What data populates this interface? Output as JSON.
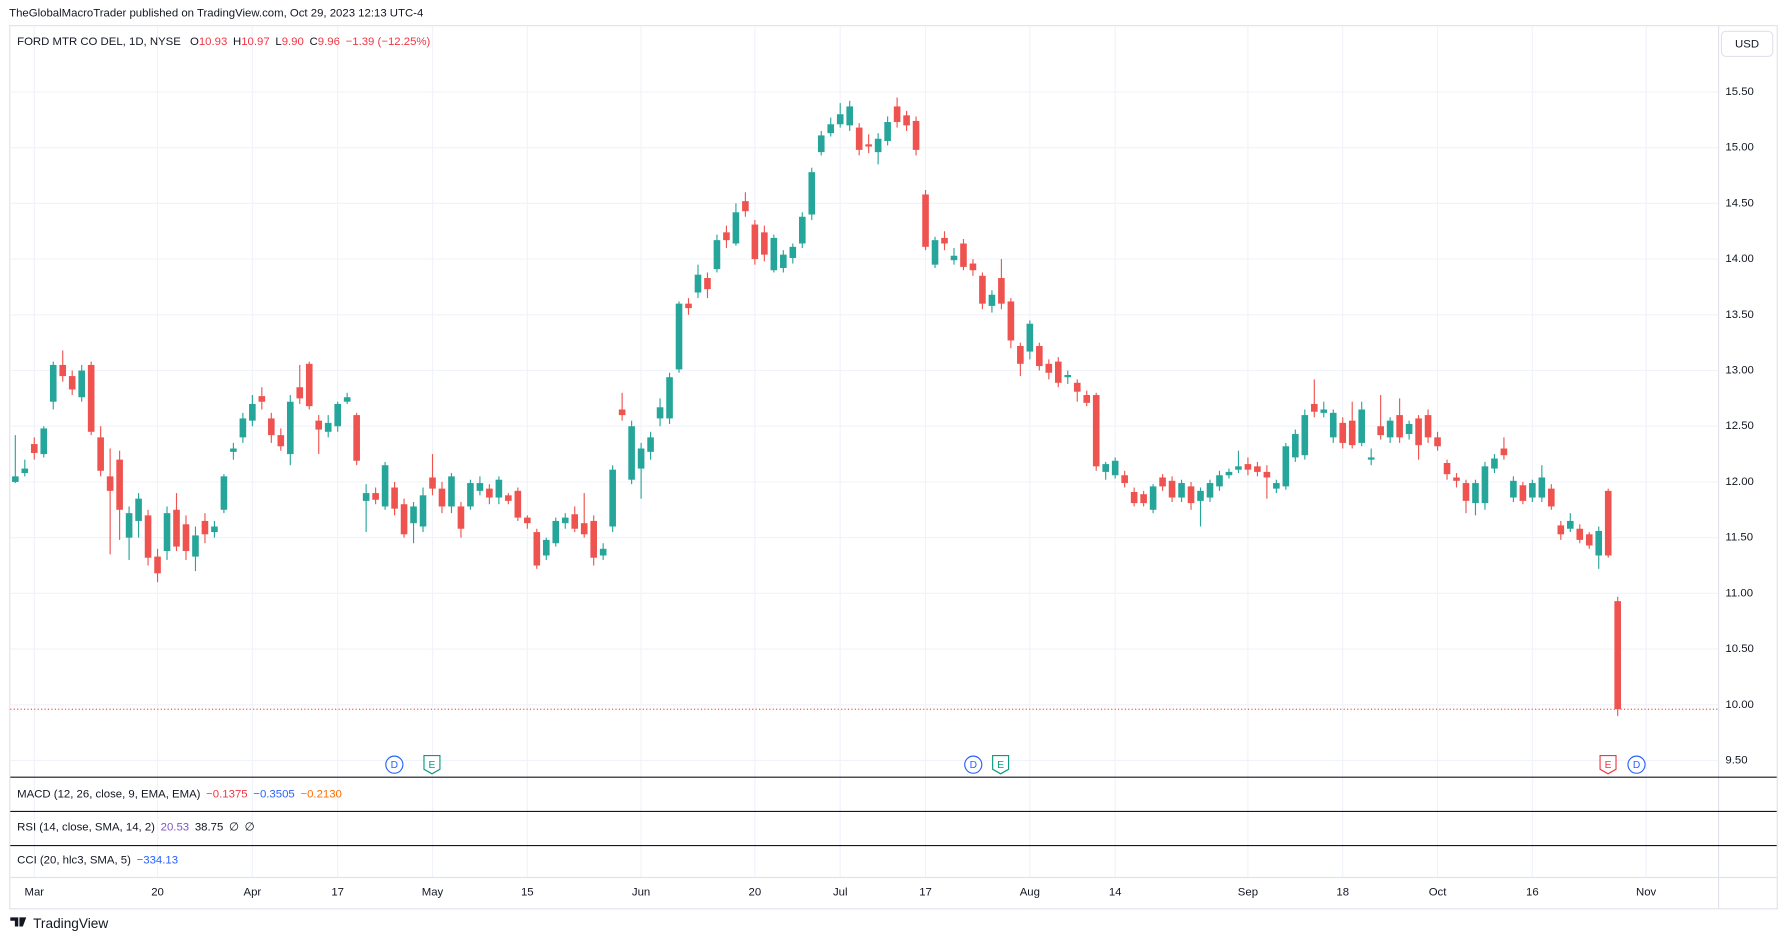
{
  "publish_note": "TheGlobalMacroTrader published on TradingView.com, Oct 29, 2023 12:13 UTC-4",
  "header": {
    "symbol": "FORD MTR CO DEL, 1D, NYSE",
    "ohlc": [
      {
        "label": "O",
        "value": "10.93"
      },
      {
        "label": "H",
        "value": "10.97"
      },
      {
        "label": "L",
        "value": "9.90"
      },
      {
        "label": "C",
        "value": "9.96"
      }
    ],
    "change": "−1.39 (−12.25%)"
  },
  "currency_button": "USD",
  "indicators": [
    {
      "name": "MACD (12, 26, close, 9, EMA, EMA)",
      "values": [
        {
          "text": "−0.1375",
          "color": "#f23645"
        },
        {
          "text": "−0.3505",
          "color": "#2962ff"
        },
        {
          "text": "−0.2130",
          "color": "#ff6d00"
        }
      ]
    },
    {
      "name": "RSI (14, close, SMA, 14, 2)",
      "values": [
        {
          "text": "20.53",
          "color": "#7e57c2"
        },
        {
          "text": "38.75",
          "color": "#131722"
        },
        {
          "text": "∅",
          "color": "#131722"
        },
        {
          "text": "∅",
          "color": "#131722"
        }
      ]
    },
    {
      "name": "CCI (20, hlc3, SMA, 5)",
      "values": [
        {
          "text": "−334.13",
          "color": "#2962ff"
        }
      ]
    }
  ],
  "events": [
    {
      "label": "D",
      "color": "#2962ff"
    },
    {
      "label": "E",
      "color": "#089981"
    },
    {
      "label": "D",
      "color": "#2962ff"
    },
    {
      "label": "E",
      "color": "#089981"
    },
    {
      "label": "E",
      "color": "#f23645"
    },
    {
      "label": "D",
      "color": "#2962ff"
    }
  ],
  "brand": "TradingView",
  "chart_data": {
    "type": "candlestick",
    "up_color": "#26a69a",
    "down_color": "#ef5350",
    "grid": true,
    "last_price_line": true,
    "ylim": [
      9.35,
      16.09
    ],
    "yticks": [
      {
        "value": 9.5,
        "label": "9.50"
      },
      {
        "value": 10,
        "label": "10.00"
      },
      {
        "value": 10.5,
        "label": "10.50"
      },
      {
        "value": 11,
        "label": "11.00"
      },
      {
        "value": 11.5,
        "label": "11.50"
      },
      {
        "value": 12,
        "label": "12.00"
      },
      {
        "value": 12.5,
        "label": "12.50"
      },
      {
        "value": 13,
        "label": "13.00"
      },
      {
        "value": 13.5,
        "label": "13.50"
      },
      {
        "value": 14,
        "label": "14.00"
      },
      {
        "value": 14.5,
        "label": "14.50"
      },
      {
        "value": 15,
        "label": "15.00"
      },
      {
        "value": 15.5,
        "label": "15.50"
      }
    ],
    "categories": [
      null,
      null,
      "Mar",
      null,
      null,
      null,
      null,
      null,
      null,
      null,
      null,
      null,
      null,
      null,
      null,
      "20",
      null,
      null,
      null,
      null,
      null,
      null,
      null,
      null,
      null,
      "Apr",
      null,
      null,
      null,
      null,
      null,
      null,
      null,
      null,
      "17",
      null,
      null,
      null,
      null,
      null,
      null,
      null,
      null,
      null,
      "May",
      null,
      null,
      null,
      null,
      null,
      null,
      null,
      null,
      null,
      "15",
      null,
      null,
      null,
      null,
      null,
      null,
      null,
      null,
      null,
      null,
      null,
      "Jun",
      null,
      null,
      null,
      null,
      null,
      null,
      null,
      null,
      null,
      null,
      null,
      "20",
      null,
      null,
      null,
      null,
      null,
      null,
      null,
      null,
      "Jul",
      null,
      null,
      null,
      null,
      null,
      null,
      null,
      null,
      "17",
      null,
      null,
      null,
      null,
      null,
      null,
      null,
      null,
      null,
      null,
      "Aug",
      null,
      null,
      null,
      null,
      null,
      null,
      null,
      null,
      "14",
      null,
      null,
      null,
      null,
      null,
      null,
      null,
      null,
      null,
      null,
      null,
      null,
      null,
      "Sep",
      null,
      null,
      null,
      null,
      null,
      null,
      null,
      null,
      null,
      "18",
      null,
      null,
      null,
      null,
      null,
      null,
      null,
      null,
      null,
      "Oct",
      null,
      null,
      null,
      null,
      null,
      null,
      null,
      null,
      null,
      "16",
      null,
      null,
      null,
      null,
      null,
      null,
      null,
      null,
      null,
      null,
      null,
      "Nov"
    ],
    "open": [
      12.0,
      12.08,
      12.34,
      12.25,
      12.72,
      13.05,
      12.95,
      12.76,
      13.05,
      12.4,
      12.05,
      12.2,
      11.5,
      11.65,
      11.7,
      11.33,
      11.38,
      11.75,
      11.62,
      11.33,
      11.65,
      11.55,
      11.75,
      12.27,
      12.4,
      12.55,
      12.77,
      12.57,
      12.42,
      12.25,
      12.85,
      13.06,
      12.55,
      12.45,
      12.5,
      12.72,
      12.6,
      11.83,
      11.9,
      11.78,
      11.95,
      11.8,
      11.63,
      11.6,
      12.04,
      11.94,
      11.78,
      11.78,
      11.78,
      11.92,
      11.94,
      11.86,
      11.88,
      11.92,
      11.68,
      11.55,
      11.34,
      11.45,
      11.63,
      11.71,
      11.63,
      11.65,
      11.34,
      11.6,
      12.65,
      12.02,
      12.12,
      12.27,
      12.57,
      12.57,
      13.01,
      13.6,
      13.7,
      13.83,
      13.91,
      14.24,
      14.14,
      14.52,
      14.31,
      14.24,
      13.9,
      13.92,
      14.01,
      14.14,
      14.4,
      14.96,
      15.13,
      15.21,
      15.2,
      15.18,
      15.03,
      14.96,
      15.06,
      15.37,
      15.29,
      15.24,
      14.58,
      13.95,
      14.19,
      13.99,
      14.14,
      13.96,
      13.85,
      13.58,
      13.83,
      13.62,
      13.22,
      13.17,
      13.22,
      13.06,
      13.08,
      12.94,
      12.89,
      12.78,
      12.78,
      12.09,
      12.06,
      12.06,
      11.91,
      11.89,
      11.75,
      12.04,
      12.01,
      11.86,
      11.96,
      11.83,
      11.86,
      11.96,
      12.06,
      12.11,
      12.16,
      12.14,
      12.09,
      11.94,
      11.96,
      12.22,
      12.24,
      12.7,
      12.62,
      12.4,
      12.53,
      12.55,
      12.35,
      12.2,
      12.5,
      12.4,
      12.6,
      12.43,
      12.57,
      12.6,
      12.4,
      12.17,
      12.04,
      11.99,
      11.81,
      11.81,
      12.12,
      12.3,
      11.86,
      11.97,
      11.86,
      11.86,
      11.94,
      11.61,
      11.58,
      11.58,
      11.53,
      11.34,
      11.92,
      10.93,
      null,
      null,
      null
    ],
    "high": [
      12.42,
      12.2,
      12.4,
      12.5,
      13.08,
      13.18,
      13.0,
      13.05,
      13.08,
      12.5,
      12.3,
      12.28,
      11.78,
      11.9,
      11.75,
      11.4,
      11.78,
      11.9,
      11.7,
      11.6,
      11.72,
      11.65,
      12.07,
      12.35,
      12.62,
      12.78,
      12.85,
      12.62,
      12.48,
      12.78,
      13.05,
      13.08,
      12.6,
      12.6,
      12.72,
      12.8,
      12.62,
      11.98,
      11.95,
      12.18,
      12.0,
      11.85,
      11.82,
      11.95,
      12.25,
      12.0,
      12.08,
      11.82,
      12.02,
      12.05,
      11.98,
      12.05,
      11.9,
      11.95,
      11.7,
      11.58,
      11.5,
      11.68,
      11.72,
      11.78,
      11.9,
      11.7,
      11.45,
      12.15,
      12.8,
      12.55,
      12.35,
      12.45,
      12.75,
      12.98,
      13.62,
      13.65,
      13.95,
      13.88,
      14.22,
      14.3,
      14.5,
      14.6,
      14.35,
      14.3,
      14.22,
      14.08,
      14.14,
      14.42,
      14.82,
      15.15,
      15.27,
      15.4,
      15.42,
      15.22,
      15.12,
      15.13,
      15.28,
      15.45,
      15.33,
      15.28,
      14.62,
      14.2,
      14.25,
      14.1,
      14.18,
      14.0,
      13.88,
      13.72,
      14.0,
      13.65,
      13.25,
      13.45,
      13.25,
      13.1,
      13.12,
      13.0,
      12.92,
      12.82,
      12.8,
      12.18,
      12.22,
      12.1,
      11.95,
      11.92,
      11.98,
      12.07,
      12.05,
      12.02,
      12.0,
      11.95,
      12.02,
      12.1,
      12.12,
      12.28,
      12.22,
      12.18,
      12.15,
      12.02,
      12.35,
      12.47,
      12.65,
      12.92,
      12.72,
      12.65,
      12.58,
      12.72,
      12.72,
      12.3,
      12.78,
      12.58,
      12.75,
      12.55,
      12.6,
      12.65,
      12.45,
      12.2,
      12.08,
      12.02,
      12.02,
      12.18,
      12.25,
      12.4,
      12.05,
      12.0,
      12.02,
      12.15,
      11.98,
      11.65,
      11.72,
      11.62,
      11.55,
      11.6,
      11.94,
      10.97,
      null,
      null,
      null
    ],
    "low": [
      11.99,
      12.05,
      12.2,
      12.22,
      12.65,
      12.9,
      12.78,
      12.72,
      12.42,
      12.05,
      11.35,
      11.48,
      11.3,
      11.5,
      11.25,
      11.1,
      11.3,
      11.38,
      11.3,
      11.2,
      11.45,
      11.5,
      11.72,
      12.2,
      12.35,
      12.5,
      12.65,
      12.35,
      12.28,
      12.15,
      12.7,
      12.65,
      12.25,
      12.4,
      12.45,
      12.7,
      12.15,
      11.55,
      11.8,
      11.75,
      11.7,
      11.5,
      11.45,
      11.55,
      11.88,
      11.72,
      11.72,
      11.5,
      11.75,
      11.88,
      11.8,
      11.8,
      11.8,
      11.65,
      11.58,
      11.22,
      11.3,
      11.42,
      11.58,
      11.55,
      11.5,
      11.25,
      11.3,
      11.55,
      12.55,
      11.98,
      11.85,
      12.2,
      12.5,
      12.52,
      12.98,
      13.5,
      13.65,
      13.65,
      13.88,
      14.1,
      14.12,
      14.38,
      13.95,
      13.98,
      13.88,
      13.88,
      13.96,
      14.1,
      14.35,
      14.93,
      15.1,
      15.18,
      15.15,
      14.93,
      14.95,
      14.85,
      15.02,
      15.18,
      15.15,
      14.93,
      14.08,
      13.92,
      14.08,
      13.95,
      13.9,
      13.85,
      13.55,
      13.52,
      13.55,
      13.2,
      12.95,
      13.1,
      13.0,
      12.92,
      12.85,
      12.88,
      12.72,
      12.68,
      12.1,
      12.02,
      12.03,
      11.95,
      11.78,
      11.78,
      11.72,
      11.92,
      11.82,
      11.82,
      11.75,
      11.6,
      11.82,
      11.92,
      12.03,
      12.08,
      12.06,
      12.05,
      11.85,
      11.9,
      11.93,
      12.18,
      12.2,
      12.58,
      12.58,
      12.35,
      12.3,
      12.3,
      12.32,
      12.15,
      12.38,
      12.35,
      12.35,
      12.38,
      12.2,
      12.35,
      12.28,
      12.02,
      11.95,
      11.72,
      11.7,
      11.75,
      12.08,
      12.2,
      11.82,
      11.8,
      11.82,
      11.82,
      11.75,
      11.48,
      11.55,
      11.45,
      11.4,
      11.22,
      11.32,
      9.9,
      null,
      null,
      null
    ],
    "close": [
      12.05,
      12.12,
      12.26,
      12.48,
      13.05,
      12.95,
      12.83,
      13.0,
      12.45,
      12.1,
      11.92,
      11.75,
      11.72,
      11.85,
      11.32,
      11.18,
      11.72,
      11.42,
      11.38,
      11.52,
      11.53,
      11.6,
      12.05,
      12.3,
      12.57,
      12.7,
      12.72,
      12.42,
      12.32,
      12.72,
      12.75,
      12.68,
      12.47,
      12.53,
      12.7,
      12.76,
      12.19,
      11.9,
      11.84,
      12.15,
      11.76,
      11.53,
      11.78,
      11.88,
      11.94,
      11.78,
      12.05,
      11.58,
      11.99,
      11.99,
      11.86,
      12.02,
      11.83,
      11.68,
      11.63,
      11.25,
      11.48,
      11.65,
      11.68,
      11.58,
      11.53,
      11.32,
      11.4,
      12.11,
      12.6,
      12.5,
      12.3,
      12.4,
      12.67,
      12.94,
      13.6,
      13.56,
      13.86,
      13.73,
      14.17,
      14.17,
      14.42,
      14.43,
      14.0,
      14.04,
      14.19,
      14.04,
      14.11,
      14.38,
      14.78,
      15.11,
      15.21,
      15.3,
      15.37,
      14.98,
      15.01,
      15.08,
      15.23,
      15.23,
      15.2,
      14.98,
      14.11,
      14.17,
      14.14,
      14.03,
      13.93,
      13.9,
      13.6,
      13.68,
      13.6,
      13.27,
      13.06,
      13.42,
      13.04,
      12.98,
      12.89,
      12.96,
      12.81,
      12.71,
      12.14,
      12.16,
      12.19,
      11.99,
      11.81,
      11.81,
      11.96,
      11.96,
      11.86,
      11.99,
      11.81,
      11.92,
      11.99,
      12.06,
      12.09,
      12.14,
      12.11,
      12.09,
      12.04,
      11.99,
      12.32,
      12.43,
      12.6,
      12.63,
      12.65,
      12.62,
      12.35,
      12.33,
      12.65,
      12.22,
      12.42,
      12.55,
      12.4,
      12.52,
      12.33,
      12.4,
      12.32,
      12.07,
      12.01,
      11.83,
      11.99,
      12.14,
      12.21,
      12.24,
      12.01,
      11.83,
      11.99,
      12.04,
      11.78,
      11.53,
      11.65,
      11.48,
      11.43,
      11.56,
      11.34,
      9.96,
      null,
      null,
      null
    ]
  }
}
